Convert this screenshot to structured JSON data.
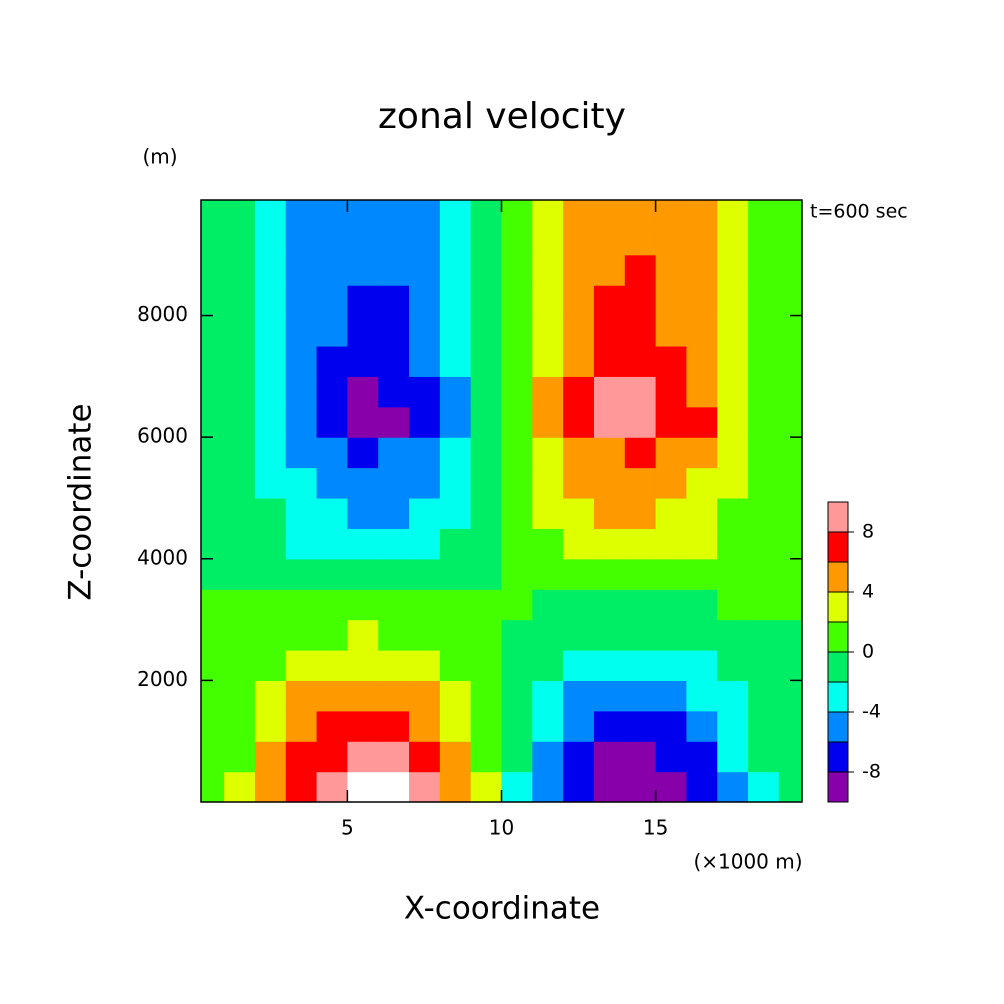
{
  "chart_data": {
    "type": "contour",
    "title": "zonal velocity",
    "ylabel_unit": "(m)",
    "annotation": "t=600 sec",
    "xlabel": "X-coordinate",
    "ylabel": "Z-coordinate",
    "xlabel_unit": "(×1000 m)",
    "xlim": [
      0.25,
      19.75
    ],
    "ylim": [
      0,
      9900
    ],
    "xticks": [
      5,
      10,
      15
    ],
    "yticks": [
      2000,
      4000,
      6000,
      8000
    ],
    "x": [
      0.5,
      1.5,
      2.5,
      3.5,
      4.5,
      5.5,
      6.5,
      7.5,
      8.5,
      9.5,
      10.5,
      11.5,
      12.5,
      13.5,
      14.5,
      15.5,
      16.5,
      17.5,
      18.5,
      19.5
    ],
    "y": [
      250,
      750,
      1250,
      1750,
      2250,
      2750,
      3250,
      3750,
      4250,
      4750,
      5250,
      5750,
      6250,
      6750,
      7250,
      7750,
      8250,
      8750,
      9250,
      9750
    ],
    "z": [
      [
        0.5,
        2.3,
        4.6,
        7.4,
        9.3,
        10.3,
        10.0,
        8.0,
        5.4,
        2.3,
        -2.3,
        -5.4,
        -8.0,
        -10.0,
        -10.3,
        -9.3,
        -7.4,
        -4.6,
        -2.3,
        -0.5
      ],
      [
        0.4,
        1.9,
        4.0,
        6.3,
        7.9,
        8.8,
        8.5,
        6.9,
        4.6,
        1.9,
        -1.9,
        -4.6,
        -6.9,
        -8.5,
        -8.8,
        -7.9,
        -6.3,
        -4.0,
        -1.9,
        -0.4
      ],
      [
        0.4,
        1.6,
        3.2,
        5.2,
        6.5,
        7.2,
        7.0,
        5.6,
        3.7,
        1.6,
        -1.6,
        -3.7,
        -5.6,
        -7.0,
        -7.2,
        -6.5,
        -5.2,
        -3.2,
        -1.6,
        -0.4
      ],
      [
        0.3,
        1.2,
        2.5,
        4.0,
        5.0,
        5.5,
        5.3,
        4.3,
        2.9,
        1.2,
        -1.2,
        -2.9,
        -4.3,
        -5.3,
        -5.5,
        -5.0,
        -4.0,
        -2.5,
        -1.2,
        -0.3
      ],
      [
        0.2,
        0.8,
        1.6,
        2.6,
        3.2,
        3.6,
        3.5,
        2.8,
        1.9,
        0.8,
        -0.8,
        -1.9,
        -2.8,
        -3.5,
        -3.6,
        -3.2,
        -2.6,
        -1.6,
        -0.8,
        -0.2
      ],
      [
        0.1,
        0.4,
        0.9,
        1.4,
        1.8,
        2.0,
        1.9,
        1.6,
        1.0,
        0.4,
        -0.4,
        -1.0,
        -1.6,
        -1.9,
        -2.0,
        -1.8,
        -1.4,
        -0.9,
        -0.4,
        -0.1
      ],
      [
        0.0,
        0.0,
        0.0,
        0.1,
        0.1,
        0.1,
        0.1,
        0.1,
        0.1,
        0.0,
        -0.0,
        -0.1,
        -0.1,
        -0.1,
        -0.1,
        -0.1,
        -0.1,
        -0.0,
        -0.0,
        -0.0
      ],
      [
        -0.1,
        -0.4,
        -0.8,
        -1.3,
        -1.6,
        -1.8,
        -1.7,
        -1.4,
        -0.9,
        -0.4,
        0.4,
        0.9,
        1.4,
        1.7,
        1.8,
        1.6,
        1.3,
        0.8,
        0.4,
        0.1
      ],
      [
        -0.2,
        -0.7,
        -1.4,
        -2.3,
        -2.9,
        -3.2,
        -3.1,
        -2.5,
        -1.7,
        -0.7,
        0.7,
        1.7,
        2.5,
        3.1,
        3.2,
        2.9,
        2.3,
        1.4,
        0.7,
        0.2
      ],
      [
        -0.2,
        -0.9,
        -1.9,
        -3.0,
        -3.8,
        -4.2,
        -4.1,
        -3.3,
        -2.2,
        -0.9,
        0.9,
        2.2,
        3.3,
        4.1,
        4.2,
        3.8,
        3.0,
        1.9,
        0.9,
        0.2
      ],
      [
        -0.3,
        -1.1,
        -2.3,
        -3.7,
        -4.7,
        -5.2,
        -5.0,
        -4.1,
        -2.7,
        -1.1,
        1.1,
        2.7,
        4.1,
        5.0,
        5.2,
        4.7,
        3.7,
        2.3,
        1.1,
        0.3
      ],
      [
        -0.3,
        -1.3,
        -2.7,
        -4.4,
        -5.5,
        -6.1,
        -5.9,
        -4.8,
        -3.2,
        -1.3,
        1.3,
        3.2,
        4.8,
        5.9,
        6.1,
        5.5,
        4.4,
        2.7,
        1.3,
        0.3
      ],
      [
        -0.4,
        -1.8,
        -3.7,
        -6.0,
        -7.5,
        -8.3,
        -8.1,
        -6.5,
        -4.3,
        -1.8,
        1.8,
        4.3,
        6.5,
        8.1,
        8.3,
        7.5,
        6.0,
        3.7,
        1.8,
        0.4
      ],
      [
        -0.4,
        -1.8,
        -3.7,
        -5.9,
        -7.4,
        -8.2,
        -8.0,
        -6.4,
        -4.3,
        -1.8,
        1.8,
        4.3,
        6.4,
        8.0,
        8.2,
        7.4,
        5.9,
        3.7,
        1.8,
        0.4
      ],
      [
        -0.4,
        -1.6,
        -3.2,
        -5.2,
        -6.5,
        -7.2,
        -7.0,
        -5.6,
        -3.7,
        -1.6,
        1.6,
        3.7,
        5.6,
        7.0,
        7.2,
        6.5,
        5.2,
        3.2,
        1.6,
        0.4
      ],
      [
        -0.3,
        -1.5,
        -3.0,
        -4.8,
        -5.9,
        -6.6,
        -6.4,
        -5.1,
        -3.4,
        -1.5,
        1.5,
        3.4,
        5.1,
        6.4,
        6.6,
        5.9,
        4.8,
        3.0,
        1.5,
        0.3
      ],
      [
        -0.3,
        -1.4,
        -2.8,
        -4.5,
        -5.7,
        -6.3,
        -6.1,
        -4.9,
        -3.3,
        -1.4,
        1.4,
        3.3,
        4.9,
        6.1,
        6.3,
        5.7,
        4.5,
        2.8,
        1.4,
        0.3
      ],
      [
        -0.3,
        -1.3,
        -2.7,
        -4.3,
        -5.4,
        -6.0,
        -5.8,
        -4.7,
        -3.1,
        -1.3,
        1.3,
        3.1,
        4.7,
        5.8,
        6.0,
        5.4,
        4.3,
        2.7,
        1.3,
        0.3
      ],
      [
        -0.3,
        -1.3,
        -2.6,
        -4.2,
        -5.2,
        -5.8,
        -5.6,
        -4.5,
        -3.0,
        -1.3,
        1.3,
        3.0,
        4.5,
        5.6,
        5.8,
        5.2,
        4.2,
        2.6,
        1.3,
        0.3
      ],
      [
        -0.3,
        -1.3,
        -2.6,
        -4.1,
        -5.1,
        -5.7,
        -5.5,
        -4.4,
        -3.0,
        -1.3,
        1.3,
        3.0,
        4.4,
        5.5,
        5.7,
        5.1,
        4.1,
        2.6,
        1.3,
        0.3
      ]
    ],
    "levels": [
      -10,
      -8,
      -6,
      -4,
      -2,
      0,
      2,
      4,
      6,
      8,
      10
    ],
    "colors": [
      "#8800aa",
      "#0000ee",
      "#0088ff",
      "#00ffee",
      "#00ee66",
      "#44ff00",
      "#ddff00",
      "#ff9900",
      "#ff0000",
      "#ff9999"
    ],
    "over_color": "#ffffff",
    "colorbar_ticks": [
      -8,
      -4,
      0,
      4,
      8
    ]
  }
}
